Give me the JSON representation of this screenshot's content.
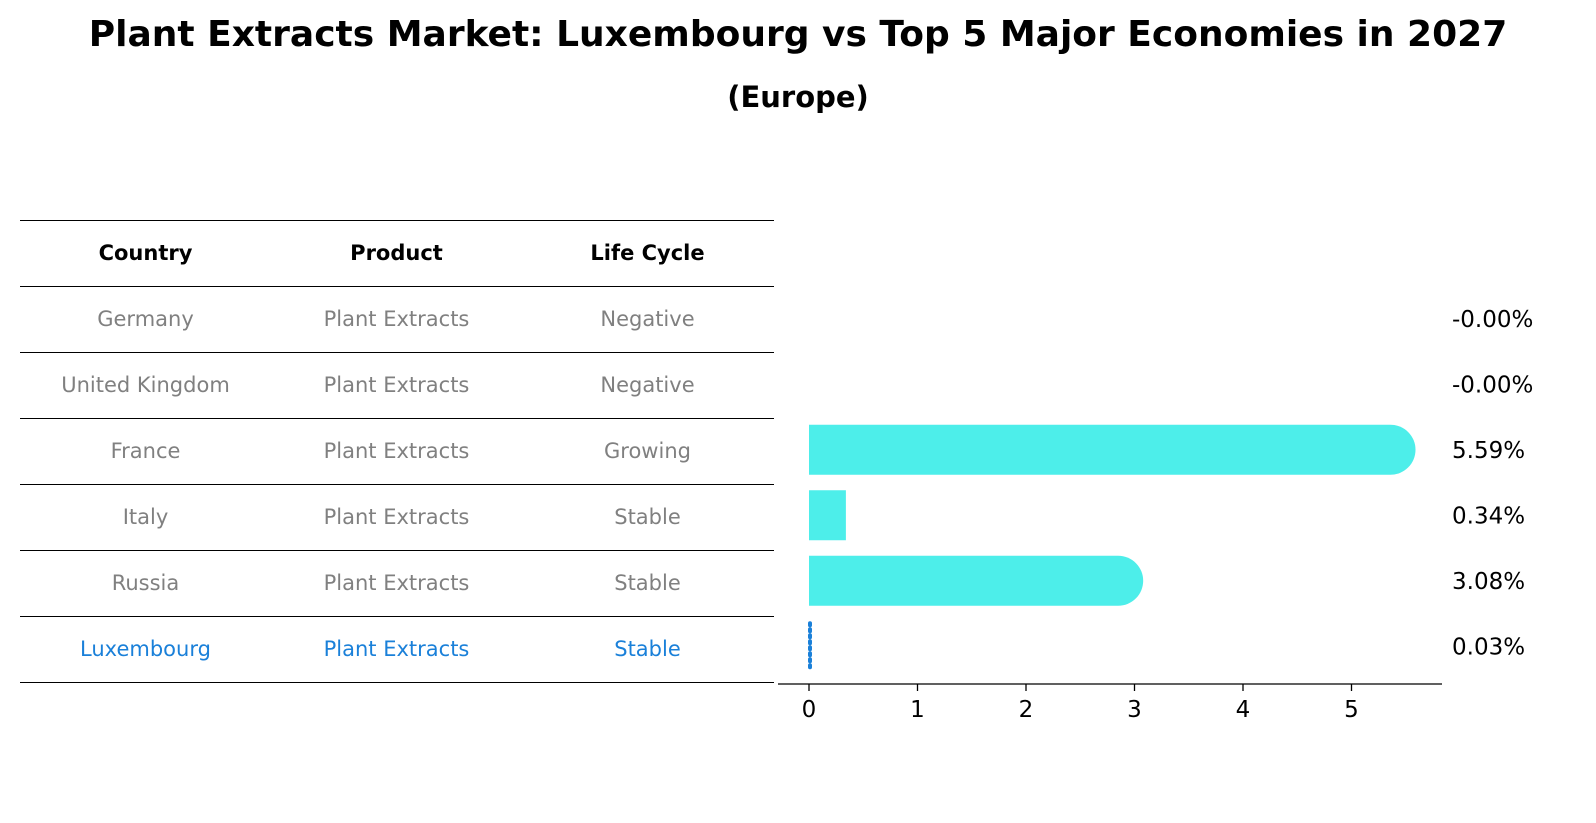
{
  "title": "Plant Extracts Market: Luxembourg vs Top 5 Major Economies in 2027",
  "subtitle": "(Europe)",
  "table": {
    "headers": [
      "Country",
      "Product",
      "Life Cycle"
    ],
    "rows": [
      [
        "Germany",
        "Plant Extracts",
        "Negative"
      ],
      [
        "United Kingdom",
        "Plant Extracts",
        "Negative"
      ],
      [
        "France",
        "Plant Extracts",
        "Growing"
      ],
      [
        "Italy",
        "Plant Extracts",
        "Stable"
      ],
      [
        "Russia",
        "Plant Extracts",
        "Stable"
      ],
      [
        "Luxembourg",
        "Plant Extracts",
        "Stable"
      ]
    ],
    "highlight_row": 5
  },
  "colors": {
    "bar": "#4deeea",
    "highlight": "#1a80d9",
    "muted_text": "#808080"
  },
  "chart_data": {
    "type": "bar",
    "orientation": "horizontal",
    "categories": [
      "Germany",
      "United Kingdom",
      "France",
      "Italy",
      "Russia",
      "Luxembourg"
    ],
    "values": [
      -0.0,
      -0.0,
      5.59,
      0.34,
      3.08,
      0.03
    ],
    "value_labels": [
      "-0.00%",
      "-0.00%",
      "5.59%",
      "0.34%",
      "3.08%",
      "0.03%"
    ],
    "xticks": [
      0,
      1,
      2,
      3,
      4,
      5
    ],
    "xlim": [
      -0.28,
      5.86
    ],
    "xlabel": "",
    "ylabel": "",
    "grid": false,
    "legend": "none"
  }
}
